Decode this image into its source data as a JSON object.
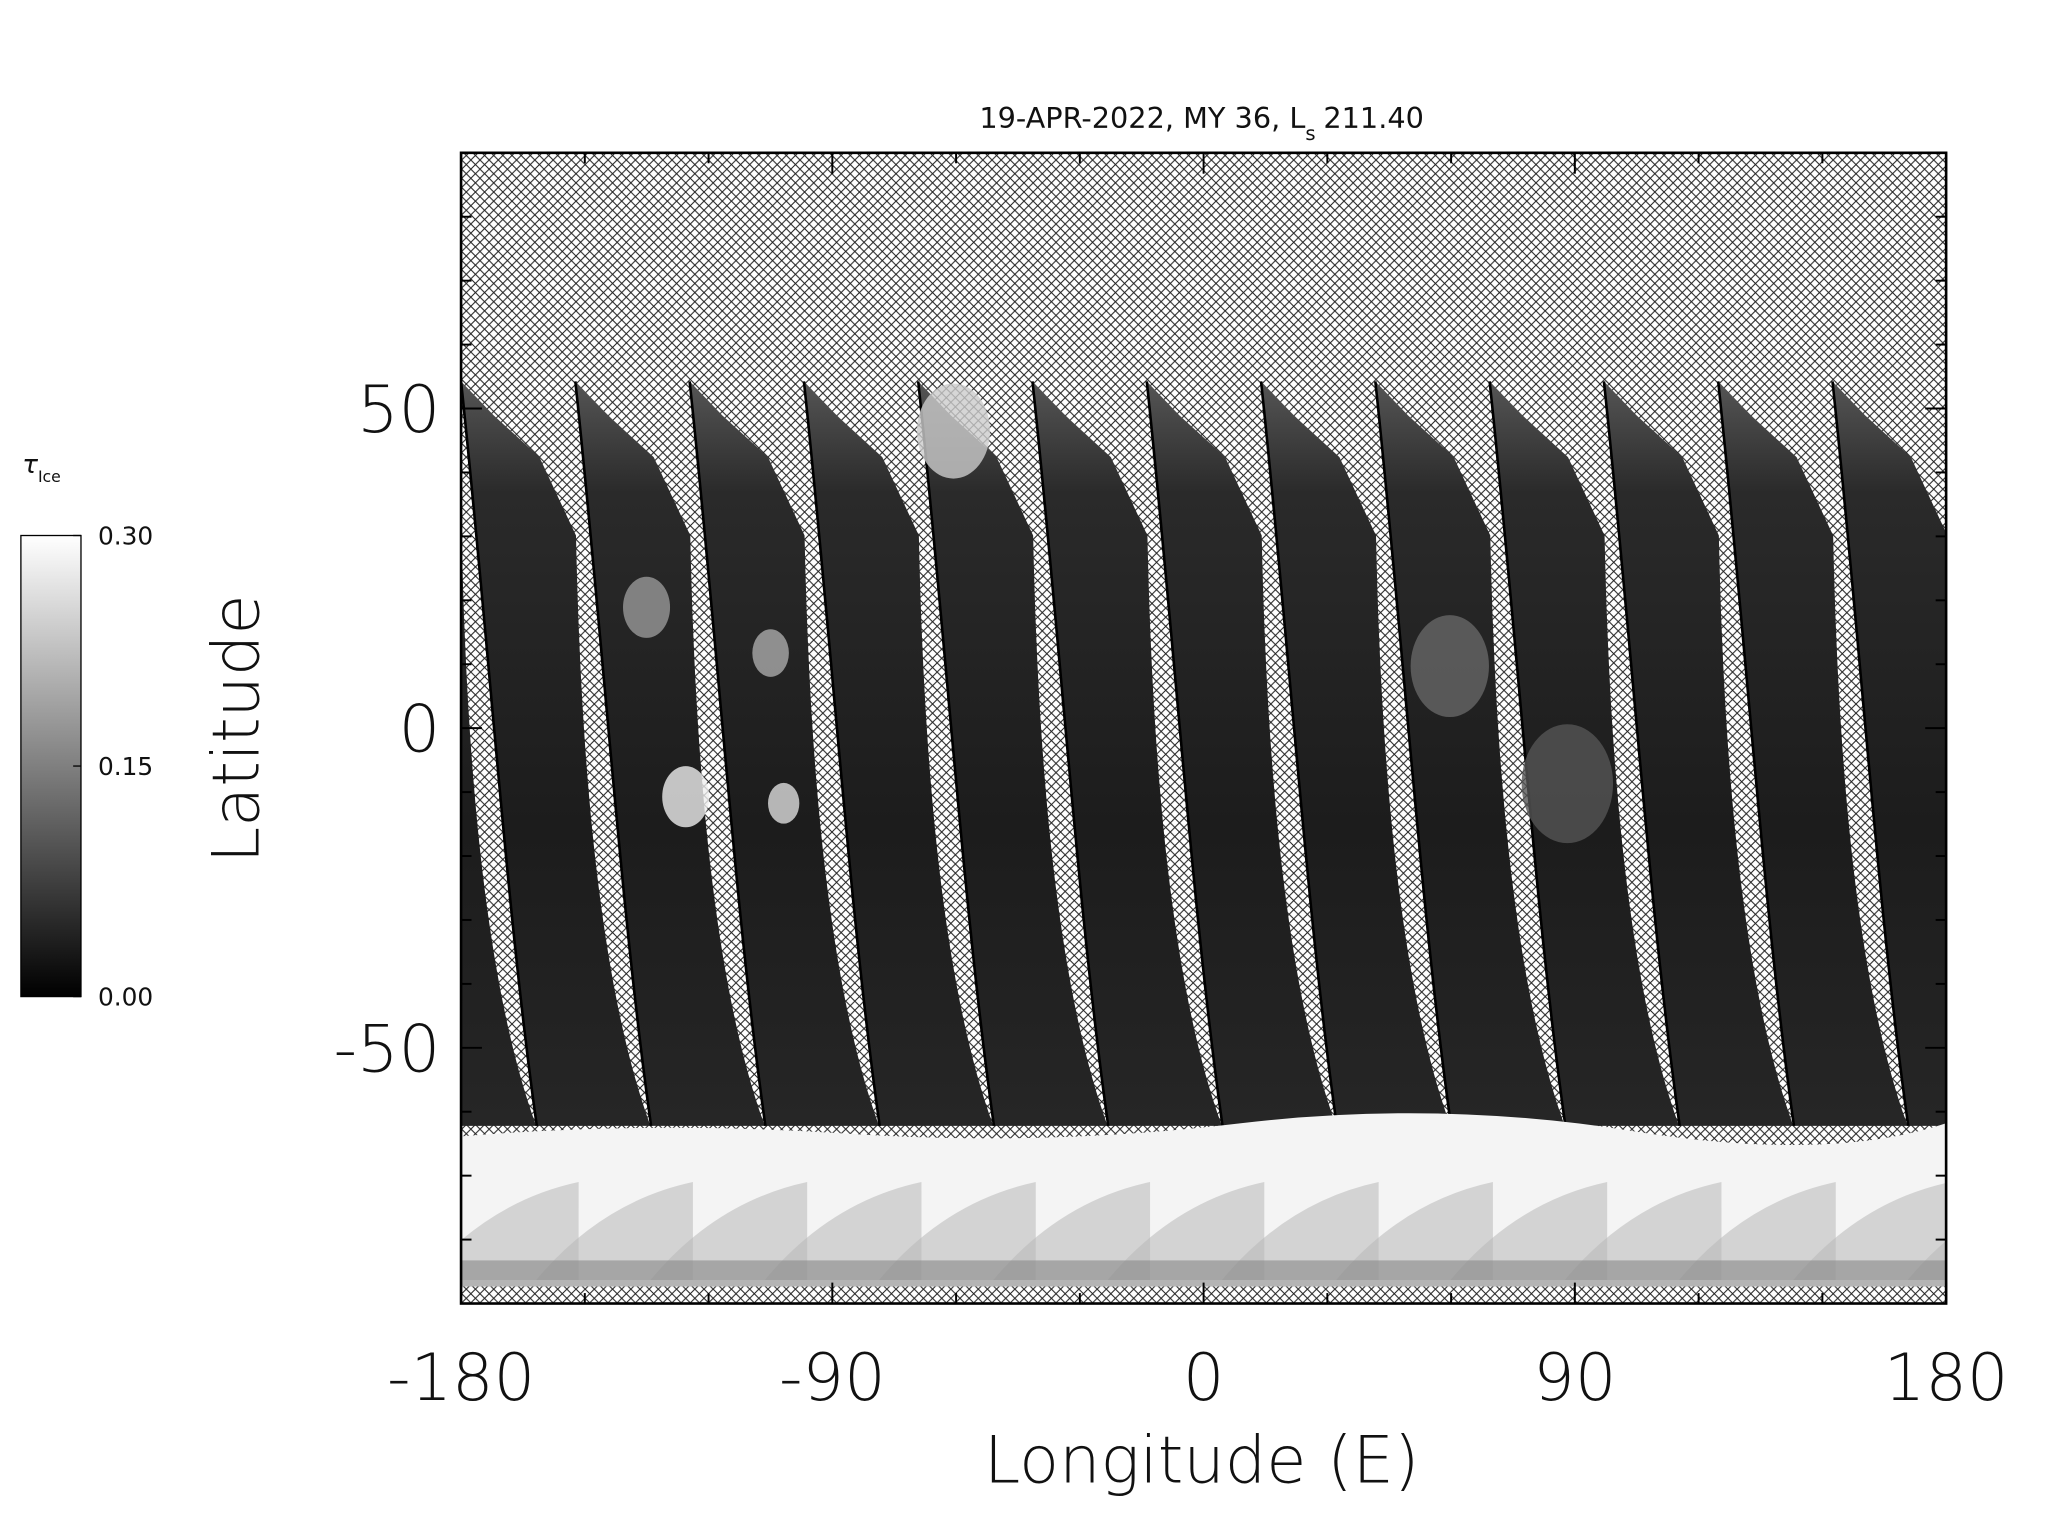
{
  "chart_data": {
    "type": "map",
    "title": "19-APR-2022, MY 36,  L",
    "title_sub": "s",
    "title_after": "211.40",
    "xlabel": "Longitude (E)",
    "ylabel": "Latitude",
    "xlim": [
      -180,
      180
    ],
    "ylim": [
      -90,
      90
    ],
    "xticks": [
      -180,
      -90,
      0,
      90,
      180
    ],
    "yticks": [
      -50,
      0,
      50
    ],
    "xminor": 3,
    "yminor": 5,
    "colorbar": {
      "label": "τ",
      "label_sub": "Ice",
      "lim": [
        0,
        0.3
      ],
      "ticks": [
        {
          "value": 0,
          "label": "0.00"
        },
        {
          "value": 0.15,
          "label": "0.15"
        },
        {
          "value": 0.3,
          "label": "0.30"
        }
      ]
    }
  }
}
